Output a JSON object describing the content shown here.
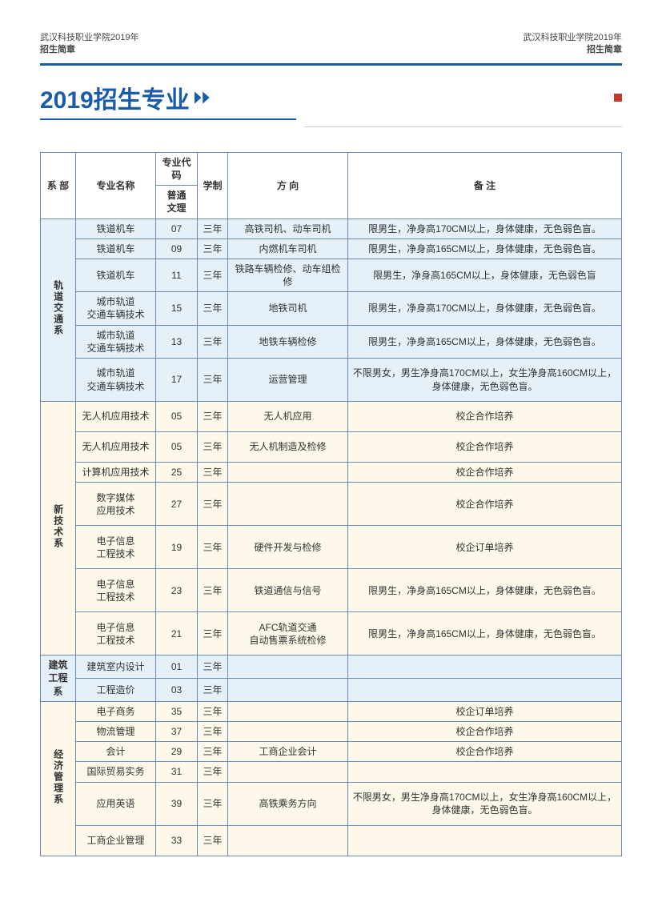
{
  "header": {
    "left_line1": "武汉科技职业学院2019年",
    "left_line2": "招生简章",
    "right_line1": "武汉科技职业学院2019年",
    "right_line2": "招生简章"
  },
  "title": "2019招生专业",
  "columns": {
    "dept": "系 部",
    "name": "专业名称",
    "code_top": "专业代码",
    "code_sub": "普通\n文理",
    "duration": "学制",
    "direction": "方 向",
    "note": "备 注"
  },
  "depts": [
    {
      "dept": "轨道交通系",
      "bg": "bg-blue",
      "rows": [
        {
          "name": "铁道机车",
          "code": "07",
          "dur": "三年",
          "dir": "高铁司机、动车司机",
          "note": "限男生，净身高170CM以上，身体健康，无色弱色盲。",
          "h": ""
        },
        {
          "name": "铁道机车",
          "code": "09",
          "dur": "三年",
          "dir": "内燃机车司机",
          "note": "限男生，净身高165CM以上，身体健康，无色弱色盲。",
          "h": ""
        },
        {
          "name": "铁道机车",
          "code": "11",
          "dur": "三年",
          "dir": "铁路车辆检修、动车组检修",
          "note": "限男生，净身高165CM以上，身体健康，无色弱色盲",
          "h": ""
        },
        {
          "name": "城市轨道\n交通车辆技术",
          "code": "15",
          "dur": "三年",
          "dir": "地铁司机",
          "note": "限男生，净身高170CM以上，身体健康，无色弱色盲。",
          "h": "mid"
        },
        {
          "name": "城市轨道\n交通车辆技术",
          "code": "13",
          "dur": "三年",
          "dir": "地铁车辆检修",
          "note": "限男生，净身高165CM以上，身体健康，无色弱色盲。",
          "h": "mid"
        },
        {
          "name": "城市轨道\n交通车辆技术",
          "code": "17",
          "dur": "三年",
          "dir": "运营管理",
          "note": "不限男女，男生净身高170CM以上，女生净身高160CM以上，身体健康，无色弱色盲。",
          "h": "tall"
        }
      ]
    },
    {
      "dept": "新技术系",
      "bg": "bg-cream",
      "rows": [
        {
          "name": "无人机应用技术",
          "code": "05",
          "dur": "三年",
          "dir": "无人机应用",
          "note": "校企合作培养",
          "noteCenter": true,
          "h": "mid"
        },
        {
          "name": "无人机应用技术",
          "code": "05",
          "dur": "三年",
          "dir": "无人机制造及检修",
          "note": "校企合作培养",
          "noteCenter": true,
          "h": "mid"
        },
        {
          "name": "计算机应用技术",
          "code": "25",
          "dur": "三年",
          "dir": "",
          "note": "校企合作培养",
          "noteCenter": true,
          "h": ""
        },
        {
          "name": "数字媒体\n应用技术",
          "code": "27",
          "dur": "三年",
          "dir": "",
          "note": "校企合作培养",
          "noteCenter": true,
          "h": "tall"
        },
        {
          "name": "电子信息\n工程技术",
          "code": "19",
          "dur": "三年",
          "dir": "硬件开发与检修",
          "note": "校企订单培养",
          "noteCenter": true,
          "h": "tall"
        },
        {
          "name": "电子信息\n工程技术",
          "code": "23",
          "dur": "三年",
          "dir": "铁道通信与信号",
          "note": "限男生，净身高165CM以上，身体健康，无色弱色盲。",
          "h": "tall"
        },
        {
          "name": "电子信息\n工程技术",
          "code": "21",
          "dur": "三年",
          "dir": "AFC轨道交通\n自动售票系统检修",
          "note": "限男生，净身高165CM以上，身体健康，无色弱色盲。",
          "h": "tall"
        }
      ]
    },
    {
      "dept": "建筑\n工程系",
      "bg": "bg-blue",
      "vert": false,
      "rows": [
        {
          "name": "建筑室内设计",
          "code": "01",
          "dur": "三年",
          "dir": "",
          "note": "",
          "h": ""
        },
        {
          "name": "工程造价",
          "code": "03",
          "dur": "三年",
          "dir": "",
          "note": "",
          "h": ""
        }
      ]
    },
    {
      "dept": "经济管理系",
      "bg": "bg-cream",
      "rows": [
        {
          "name": "电子商务",
          "code": "35",
          "dur": "三年",
          "dir": "",
          "note": "校企订单培养",
          "noteCenter": true,
          "h": ""
        },
        {
          "name": "物流管理",
          "code": "37",
          "dur": "三年",
          "dir": "",
          "note": "校企合作培养",
          "noteCenter": true,
          "h": ""
        },
        {
          "name": "会计",
          "code": "29",
          "dur": "三年",
          "dir": "工商企业会计",
          "note": "校企合作培养",
          "noteCenter": true,
          "h": ""
        },
        {
          "name": "国际贸易实务",
          "code": "31",
          "dur": "三年",
          "dir": "",
          "note": "",
          "h": ""
        },
        {
          "name": "应用英语",
          "code": "39",
          "dur": "三年",
          "dir": "高铁乘务方向",
          "note": "不限男女，男生净身高170CM以上，女生净身高160CM以上，身体健康，无色弱色盲。",
          "h": "tall"
        },
        {
          "name": "工商企业管理",
          "code": "33",
          "dur": "三年",
          "dir": "",
          "note": "",
          "h": "mid"
        }
      ]
    }
  ],
  "colors": {
    "brand": "#1b5ba8",
    "border": "#6b8ab0",
    "bg_blue": "#e6f0f9",
    "bg_cream": "#fdf8e9"
  }
}
